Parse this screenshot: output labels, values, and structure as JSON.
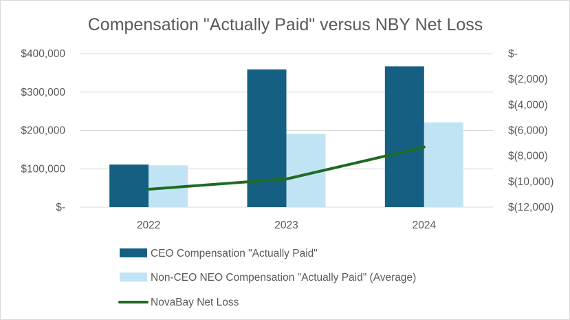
{
  "chart_data": {
    "type": "bar",
    "title": "Compensation \"Actually Paid\" versus NBY Net Loss",
    "categories": [
      "2022",
      "2023",
      "2024"
    ],
    "series": [
      {
        "name": "CEO Compensation \"Actually Paid\"",
        "type": "bar",
        "axis": "left",
        "color": "#156082",
        "values": [
          111000,
          359000,
          367000
        ]
      },
      {
        "name": "Non-CEO NEO Compensation \"Actually Paid\" (Average)",
        "type": "bar",
        "axis": "left",
        "color": "#c1e4f5",
        "values": [
          109000,
          191000,
          221000
        ]
      },
      {
        "name": "NovaBay Net Loss",
        "type": "line",
        "axis": "right",
        "color": "#1e6b24",
        "values": [
          -10600,
          -9800,
          -7300
        ]
      }
    ],
    "y_left": {
      "ylim": [
        0,
        400000
      ],
      "ticks": [
        0,
        100000,
        200000,
        300000,
        400000
      ],
      "tick_labels": [
        "$-",
        "$100,000",
        "$200,000",
        "$300,000",
        "$400,000"
      ]
    },
    "y_right": {
      "ylim": [
        -12000,
        0
      ],
      "ticks": [
        0,
        -2000,
        -4000,
        -6000,
        -8000,
        -10000,
        -12000
      ],
      "tick_labels": [
        "$-",
        "$(2,000)",
        "$(4,000)",
        "$(6,000)",
        "$(8,000)",
        "$(10,000)",
        "$(12,000)"
      ]
    },
    "grid": true,
    "legend_position": "bottom",
    "xlabel": "",
    "ylabel": ""
  }
}
